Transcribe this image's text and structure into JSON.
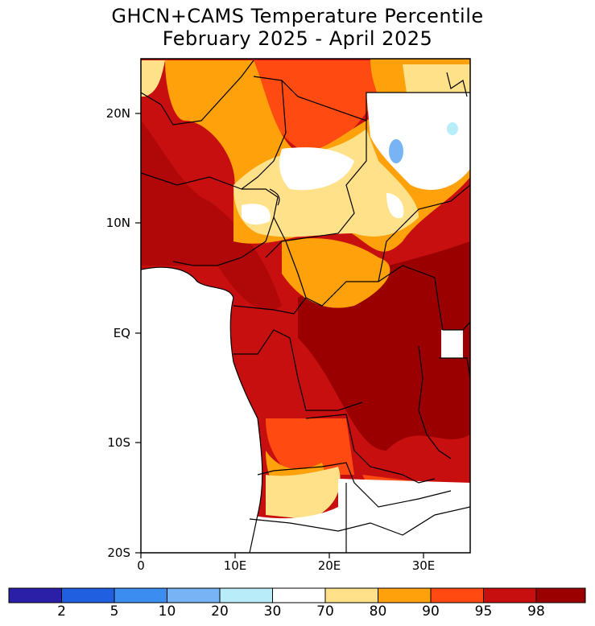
{
  "title": {
    "line1": "GHCN+CAMS Temperature Percentile",
    "line2": "February 2025 - April 2025"
  },
  "axes": {
    "y_ticks": [
      "20N",
      "10N",
      "EQ",
      "10S",
      "20S"
    ],
    "x_ticks": [
      "0",
      "10E",
      "20E",
      "30E"
    ]
  },
  "colorbar": {
    "labels": [
      "2",
      "5",
      "10",
      "20",
      "30",
      "70",
      "80",
      "90",
      "95",
      "98"
    ],
    "colors": [
      "#2a1fa6",
      "#1f5fe0",
      "#3b8ef0",
      "#78b4f5",
      "#b8ecf8",
      "#ffffff",
      "#ffe18a",
      "#ffa10a",
      "#ff4a12",
      "#c80f0f",
      "#9a0000"
    ]
  },
  "map": {
    "lat_range": [
      "25N",
      "20S"
    ],
    "lon_range": [
      "0",
      "35E"
    ]
  }
}
